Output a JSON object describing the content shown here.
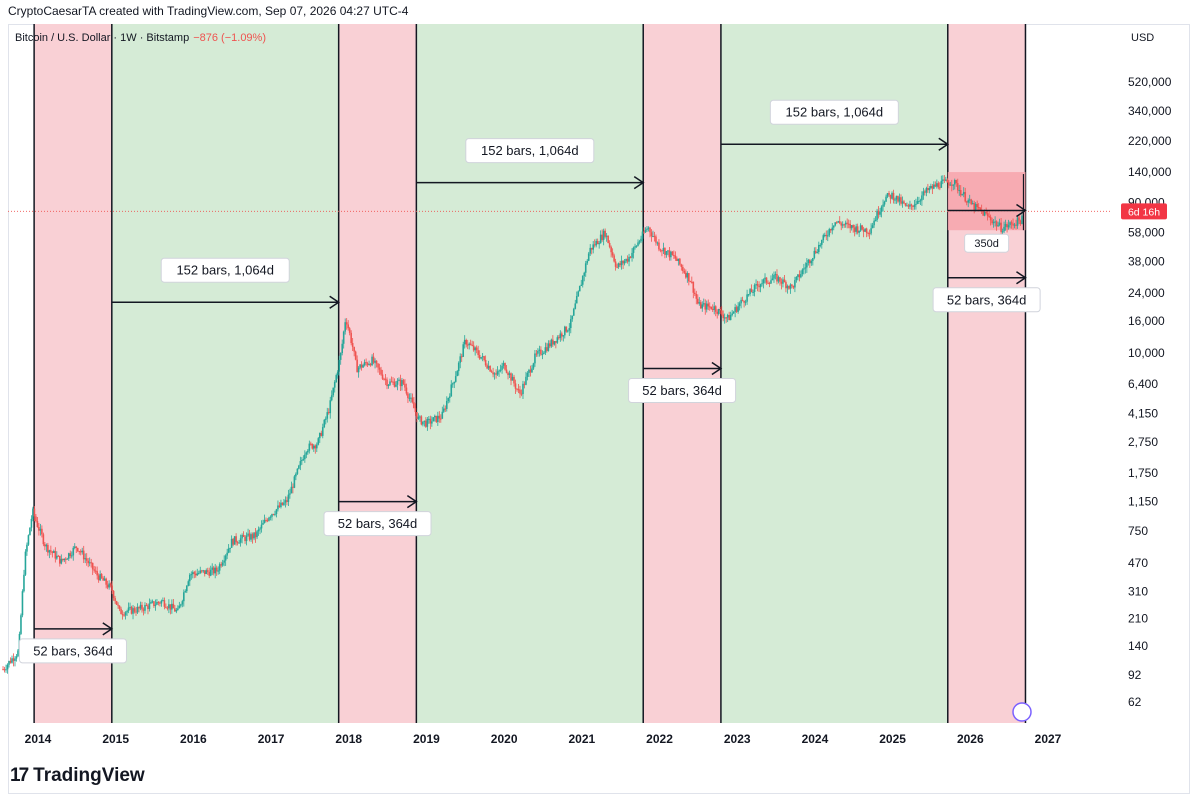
{
  "header": {
    "text": "CryptoCaesarTA created with TradingView.com, Sep 07, 2026 04:27 UTC-4"
  },
  "legend": {
    "symbol": "Bitcoin / U.S. Dollar · 1W · Bitstamp",
    "change": "−876 (−1.09%)"
  },
  "axis": {
    "currency": "USD"
  },
  "branding": {
    "logo_text": "TradingView"
  },
  "chart_data": {
    "type": "candlestick",
    "title": "Bitcoin / U.S. Dollar · 1W · Bitstamp",
    "y_scale": "log",
    "x_ticks": [
      "2014",
      "2015",
      "2016",
      "2017",
      "2018",
      "2019",
      "2020",
      "2021",
      "2022",
      "2023",
      "2024",
      "2025",
      "2026",
      "2027"
    ],
    "y_ticks": [
      520000,
      340000,
      220000,
      140000,
      90000,
      58000,
      38000,
      24000,
      16000,
      10000,
      6400,
      4150,
      2750,
      1750,
      1150,
      750,
      470,
      310,
      210,
      140,
      92,
      62
    ],
    "y_tick_labels": [
      "520,000",
      "340,000",
      "220,000",
      "140,000",
      "90,000",
      "58,000",
      "38,000",
      "24,000",
      "16,000",
      "10,000",
      "6,400",
      "4,150",
      "2,750",
      "1,750",
      "1,150",
      "750",
      "470",
      "310",
      "210",
      "140",
      "92",
      "62"
    ],
    "current_price_tag": "6d 16h",
    "price_series": [
      {
        "date": 2013.55,
        "value": 100
      },
      {
        "date": 2013.75,
        "value": 130
      },
      {
        "date": 2013.83,
        "value": 500
      },
      {
        "date": 2013.93,
        "value": 1000
      },
      {
        "date": 2014.0,
        "value": 800
      },
      {
        "date": 2014.1,
        "value": 600
      },
      {
        "date": 2014.3,
        "value": 480
      },
      {
        "date": 2014.5,
        "value": 600
      },
      {
        "date": 2014.75,
        "value": 400
      },
      {
        "date": 2014.95,
        "value": 320
      },
      {
        "date": 2015.05,
        "value": 230
      },
      {
        "date": 2015.3,
        "value": 240
      },
      {
        "date": 2015.6,
        "value": 270
      },
      {
        "date": 2015.8,
        "value": 230
      },
      {
        "date": 2015.95,
        "value": 400
      },
      {
        "date": 2016.3,
        "value": 420
      },
      {
        "date": 2016.5,
        "value": 650
      },
      {
        "date": 2016.8,
        "value": 700
      },
      {
        "date": 2016.98,
        "value": 950
      },
      {
        "date": 2017.2,
        "value": 1150
      },
      {
        "date": 2017.45,
        "value": 2500
      },
      {
        "date": 2017.6,
        "value": 2700
      },
      {
        "date": 2017.75,
        "value": 4500
      },
      {
        "date": 2017.9,
        "value": 10000
      },
      {
        "date": 2017.96,
        "value": 17000
      },
      {
        "date": 2018.05,
        "value": 11000
      },
      {
        "date": 2018.1,
        "value": 8000
      },
      {
        "date": 2018.3,
        "value": 9000
      },
      {
        "date": 2018.5,
        "value": 6500
      },
      {
        "date": 2018.7,
        "value": 6500
      },
      {
        "date": 2018.9,
        "value": 3800
      },
      {
        "date": 2019.0,
        "value": 3600
      },
      {
        "date": 2019.2,
        "value": 4000
      },
      {
        "date": 2019.4,
        "value": 8000
      },
      {
        "date": 2019.5,
        "value": 12000
      },
      {
        "date": 2019.7,
        "value": 9500
      },
      {
        "date": 2019.9,
        "value": 7200
      },
      {
        "date": 2020.0,
        "value": 8500
      },
      {
        "date": 2020.2,
        "value": 5500
      },
      {
        "date": 2020.4,
        "value": 9500
      },
      {
        "date": 2020.6,
        "value": 11500
      },
      {
        "date": 2020.85,
        "value": 15000
      },
      {
        "date": 2021.0,
        "value": 29000
      },
      {
        "date": 2021.1,
        "value": 45000
      },
      {
        "date": 2021.3,
        "value": 58000
      },
      {
        "date": 2021.45,
        "value": 35000
      },
      {
        "date": 2021.6,
        "value": 40000
      },
      {
        "date": 2021.85,
        "value": 63000
      },
      {
        "date": 2022.0,
        "value": 47000
      },
      {
        "date": 2022.2,
        "value": 40000
      },
      {
        "date": 2022.4,
        "value": 29000
      },
      {
        "date": 2022.5,
        "value": 20000
      },
      {
        "date": 2022.7,
        "value": 19500
      },
      {
        "date": 2022.88,
        "value": 16500
      },
      {
        "date": 2023.05,
        "value": 21000
      },
      {
        "date": 2023.3,
        "value": 28000
      },
      {
        "date": 2023.5,
        "value": 30000
      },
      {
        "date": 2023.7,
        "value": 26000
      },
      {
        "date": 2023.9,
        "value": 37000
      },
      {
        "date": 2024.1,
        "value": 52000
      },
      {
        "date": 2024.25,
        "value": 68000
      },
      {
        "date": 2024.5,
        "value": 62000
      },
      {
        "date": 2024.7,
        "value": 60000
      },
      {
        "date": 2024.9,
        "value": 96000
      },
      {
        "date": 2025.0,
        "value": 100000
      },
      {
        "date": 2025.2,
        "value": 82000
      },
      {
        "date": 2025.45,
        "value": 107000
      },
      {
        "date": 2025.6,
        "value": 118000
      },
      {
        "date": 2025.78,
        "value": 122000
      },
      {
        "date": 2025.88,
        "value": 105000
      },
      {
        "date": 2026.0,
        "value": 88000
      },
      {
        "date": 2026.2,
        "value": 75000
      },
      {
        "date": 2026.4,
        "value": 62000
      },
      {
        "date": 2026.55,
        "value": 66000
      },
      {
        "date": 2026.68,
        "value": 71000
      }
    ],
    "cycle_bands": [
      {
        "start": 2013.95,
        "end": 2014.95,
        "color": "red"
      },
      {
        "start": 2014.95,
        "end": 2017.87,
        "color": "green"
      },
      {
        "start": 2017.87,
        "end": 2018.87,
        "color": "red"
      },
      {
        "start": 2018.87,
        "end": 2021.79,
        "color": "green"
      },
      {
        "start": 2021.79,
        "end": 2022.79,
        "color": "red"
      },
      {
        "start": 2022.79,
        "end": 2025.71,
        "color": "green"
      },
      {
        "start": 2025.71,
        "end": 2026.71,
        "color": "red"
      }
    ],
    "annotations": [
      {
        "text": "52 bars, 364d",
        "from": 2013.95,
        "to": 2014.95,
        "at": 180
      },
      {
        "text": "152 bars, 1,064d",
        "from": 2014.95,
        "to": 2017.87,
        "at": 21000
      },
      {
        "text": "52 bars, 364d",
        "from": 2017.87,
        "to": 2018.87,
        "at": 1150
      },
      {
        "text": "152 bars, 1,064d",
        "from": 2018.87,
        "to": 2021.79,
        "at": 120000
      },
      {
        "text": "52 bars, 364d",
        "from": 2021.79,
        "to": 2022.79,
        "at": 8000
      },
      {
        "text": "152 bars, 1,064d",
        "from": 2022.79,
        "to": 2025.71,
        "at": 210000
      },
      {
        "text": "52 bars, 364d",
        "from": 2025.71,
        "to": 2026.71,
        "at": 30000
      }
    ],
    "measure_box": {
      "label": "350d",
      "from": 2025.71,
      "to": 2026.71,
      "top": 140000,
      "bottom": 60000,
      "arrow_at": 80000
    }
  },
  "colors": {
    "green_band": "#d5ebd6",
    "red_band": "#f9d0d5",
    "up": "#26a69a",
    "down": "#ef5350",
    "price_tag": "#f23645"
  }
}
